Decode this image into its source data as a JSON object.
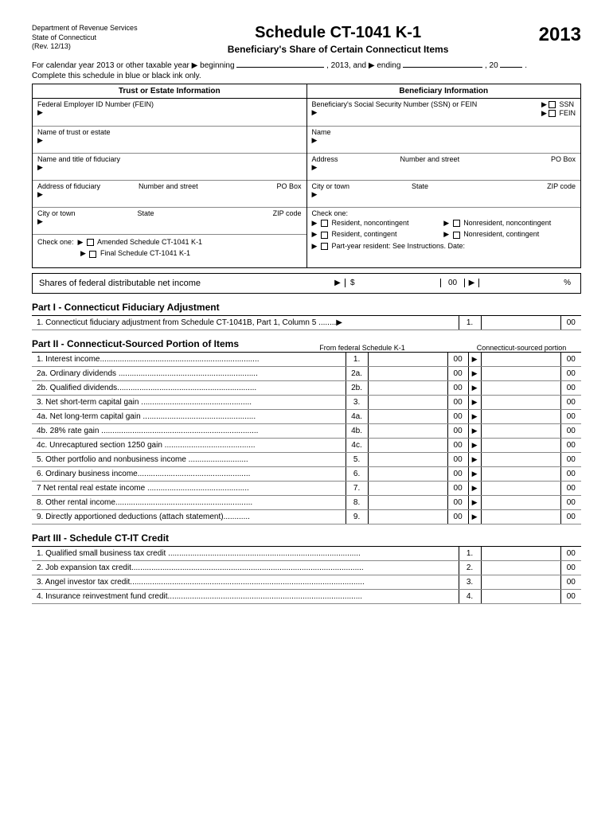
{
  "header": {
    "dept1": "Department of Revenue Services",
    "dept2": "State of Connecticut",
    "rev": "(Rev. 12/13)",
    "title": "Schedule CT-1041 K-1",
    "subtitle": "Beneficiary's Share of Certain Connecticut Items",
    "year": "2013"
  },
  "instr": {
    "line1a": "For calendar year 2013 or other taxable year ▶ beginning",
    "line1b": ", 2013, and ▶ ending",
    "line1c": ", 20",
    "line1d": ".",
    "line2": "Complete this schedule in blue or black ink only."
  },
  "info": {
    "trust_header": "Trust or Estate Information",
    "ben_header": "Beneficiary Information",
    "fein_label": "Federal Employer ID Number (FEIN)",
    "ssn_label": "Beneficiary's Social Security Number (SSN) or FEIN",
    "ssn": "SSN",
    "fein": "FEIN",
    "trust_name": "Name of trust or estate",
    "ben_name": "Name",
    "fiduciary_name": "Name and title of fiduciary",
    "address": "Address",
    "numstreet": "Number and street",
    "pobox": "PO Box",
    "fid_address": "Address of fiduciary",
    "city": "City or town",
    "state": "State",
    "zip": "ZIP code",
    "checkone": "Check one:",
    "amended": "Amended Schedule CT-1041 K-1",
    "final": "Final Schedule CT-1041 K-1",
    "res_nc": "Resident, noncontingent",
    "nonres_nc": "Nonresident, noncontingent",
    "res_c": "Resident, contingent",
    "nonres_c": "Nonresident, contingent",
    "party": "Part-year resident: See Instructions. Date:"
  },
  "shares": {
    "label": "Shares of federal distributable net income",
    "cents": "00",
    "pct": "%"
  },
  "part1": {
    "title": "Part I - Connecticut Fiduciary Adjustment",
    "line1": "1.  Connecticut fiduciary adjustment from Schedule CT-1041B, Part 1, Column 5 ........▶",
    "num": "1."
  },
  "part2": {
    "title": "Part II - Connecticut-Sourced Portion of Items",
    "sub1": "From federal Schedule K-1",
    "sub2": "Connecticut-sourced portion",
    "lines": [
      {
        "num": "1.",
        "desc": "1.  Interest income........................................................................"
      },
      {
        "num": "2a.",
        "desc": "2a. Ordinary dividends ..............................................................."
      },
      {
        "num": "2b.",
        "desc": "2b. Qualified dividends..............................................................."
      },
      {
        "num": "3.",
        "desc": "3.  Net short-term capital gain .................................................."
      },
      {
        "num": "4a.",
        "desc": "4a. Net long-term capital gain ..................................................."
      },
      {
        "num": "4b.",
        "desc": "4b. 28% rate gain ......................................................................."
      },
      {
        "num": "4c.",
        "desc": "4c. Unrecaptured section 1250 gain ........................................."
      },
      {
        "num": "5.",
        "desc": "5.  Other portfolio and nonbusiness income ..........................."
      },
      {
        "num": "6.",
        "desc": "6.  Ordinary business income..................................................."
      },
      {
        "num": "7.",
        "desc": "7   Net rental real estate income .............................................."
      },
      {
        "num": "8.",
        "desc": "8.  Other rental income.............................................................."
      },
      {
        "num": "9.",
        "desc": "9.  Directly apportioned deductions (attach statement)............"
      }
    ]
  },
  "part3": {
    "title": "Part III - Schedule CT-IT Credit",
    "lines": [
      {
        "num": "1.",
        "desc": "1.  Qualified small business tax credit ......................................................................................."
      },
      {
        "num": "2.",
        "desc": "2.  Job expansion tax credit........................................................................................................."
      },
      {
        "num": "3.",
        "desc": "3.  Angel investor tax credit.........................................................................................................."
      },
      {
        "num": "4.",
        "desc": "4.  Insurance reinvestment fund credit........................................................................................"
      }
    ]
  },
  "cents": "00"
}
